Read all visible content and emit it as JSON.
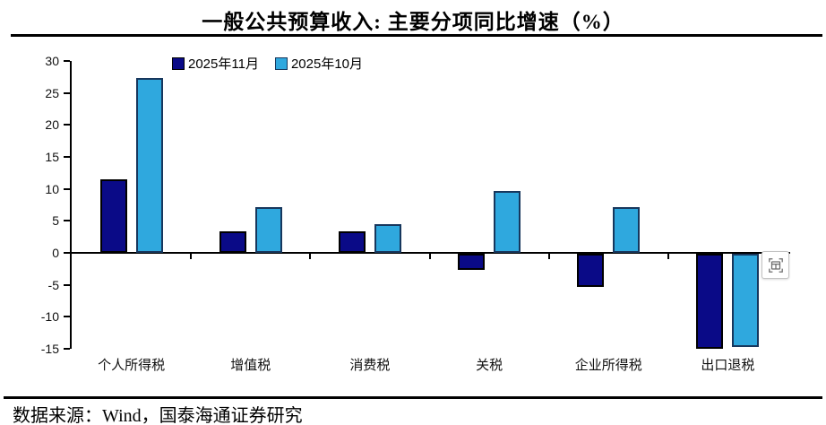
{
  "title": "一般公共预算收入: 主要分项同比增速（%）",
  "legend": {
    "items": [
      {
        "label": "2025年11月"
      },
      {
        "label": "2025年10月"
      }
    ]
  },
  "chart_data": {
    "type": "bar",
    "categories": [
      "个人所得税",
      "增值税",
      "消费税",
      "关税",
      "企业所得税",
      "出口退税"
    ],
    "series": [
      {
        "name": "2025年11月",
        "color": "#0A0A87",
        "border": "#000000",
        "values": [
          11.5,
          3.3,
          3.3,
          -2.5,
          -5.2,
          -14.9
        ]
      },
      {
        "name": "2025年10月",
        "color": "#2FA8DE",
        "border": "#17375D",
        "values": [
          27.3,
          7.2,
          4.5,
          9.7,
          7.2,
          -14.6
        ]
      }
    ],
    "ylim": [
      -15,
      30
    ],
    "yticks": [
      30,
      25,
      20,
      15,
      10,
      5,
      0,
      -5,
      -10,
      -15
    ],
    "grid": false,
    "legend_position": "top-left",
    "xlabel": "",
    "ylabel": ""
  },
  "icons": {
    "layout_options": "layout-options-icon"
  },
  "footer": {
    "source": "数据来源：Wind，国泰海通证券研究"
  }
}
